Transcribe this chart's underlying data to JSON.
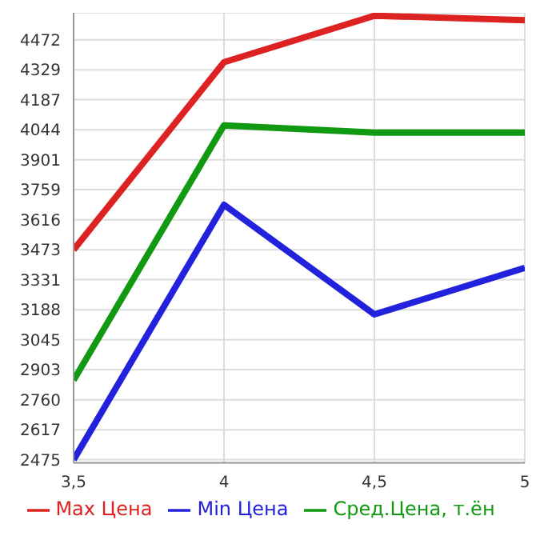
{
  "chart_data": {
    "type": "line",
    "x": [
      3.5,
      4,
      4.5,
      5
    ],
    "series": [
      {
        "name": "Max Цена",
        "color": "#dd2222",
        "values": [
          3473,
          4365,
          4586,
          4565
        ]
      },
      {
        "name": "Min Цена",
        "color": "#2222dd",
        "values": [
          2475,
          3687,
          3166,
          3387
        ]
      },
      {
        "name": "Сред.Цена, т.ён",
        "color": "#119911",
        "values": [
          2853,
          4065,
          4030,
          4030
        ]
      }
    ],
    "xlim": [
      3.5,
      5
    ],
    "xticks": [
      {
        "value": 3.5,
        "label": "3,5"
      },
      4,
      {
        "value": 4.5,
        "label": "4,5"
      },
      5
    ],
    "ylim": [
      2460,
      4600
    ],
    "yticks": [
      2475,
      2617,
      2760,
      2903,
      3045,
      3188,
      3331,
      3473,
      3616,
      3759,
      3901,
      4044,
      4187,
      4329,
      4472
    ],
    "grid": true,
    "legend": "bottom",
    "marker": "none",
    "line_style": "solid"
  }
}
